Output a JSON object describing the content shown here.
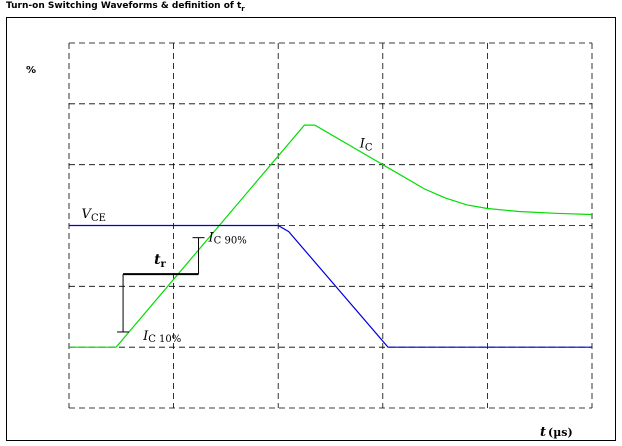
{
  "header": {
    "title_main": "Turn-on Switching Waveforms & definition of t",
    "title_sub": "r"
  },
  "chart_data": {
    "type": "line",
    "title": "Turn-on Switching Waveforms & definition of tr",
    "ylabel": "%",
    "xlabel_symbol": "t",
    "xlabel_unit": "(µs)",
    "xlim": [
      0,
      5
    ],
    "ylim": [
      0,
      6
    ],
    "grid": true,
    "grid_style": "dashed",
    "series": [
      {
        "name_symbol": "I",
        "name_sub": "C",
        "color": "#00dd00",
        "points": [
          [
            0,
            1
          ],
          [
            0.45,
            1
          ],
          [
            2.25,
            4.65
          ],
          [
            2.35,
            4.65
          ],
          [
            3.4,
            3.6
          ],
          [
            3.6,
            3.45
          ],
          [
            3.8,
            3.34
          ],
          [
            4.0,
            3.28
          ],
          [
            4.3,
            3.23
          ],
          [
            4.65,
            3.2
          ],
          [
            5.0,
            3.18
          ]
        ]
      },
      {
        "name_symbol": "V",
        "name_sub": "CE",
        "color": "#0000dd",
        "points": [
          [
            0,
            3.0
          ],
          [
            2.0,
            3.0
          ],
          [
            2.1,
            2.9
          ],
          [
            3.05,
            1.0
          ],
          [
            5.0,
            1.0
          ]
        ]
      }
    ],
    "annotations": {
      "ic10": {
        "symbol": "I",
        "sub": "C 10%",
        "x": 0.45,
        "y": 1.25
      },
      "ic90": {
        "symbol": "I",
        "sub": "C 90%",
        "x": 1.2,
        "y": 2.8
      },
      "tr": {
        "symbol": "t",
        "sub": "r",
        "x_start": 0.45,
        "x_end": 1.2
      }
    }
  }
}
